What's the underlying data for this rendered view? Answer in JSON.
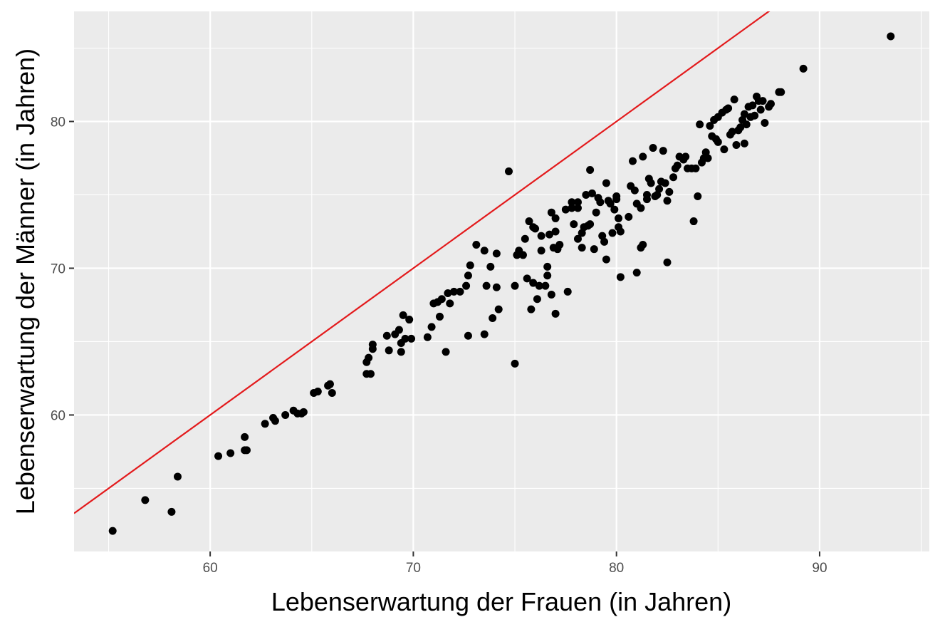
{
  "chart_data": {
    "type": "scatter",
    "title": "",
    "xlabel": "Lebenserwartung der Frauen (in Jahren)",
    "ylabel": "Lebenserwartung der Männer (in Jahren)",
    "xlim": [
      53.3,
      95.4
    ],
    "ylim": [
      50.7,
      87.5
    ],
    "x_ticks": [
      60,
      70,
      80,
      90
    ],
    "y_ticks": [
      60,
      70,
      80
    ],
    "x_tick_labels": [
      "60",
      "70",
      "80",
      "90"
    ],
    "y_tick_labels": [
      "60",
      "70",
      "80"
    ],
    "grid": true,
    "background": "#ebebeb",
    "grid_color": "#ffffff",
    "point_color": "#000000",
    "reference_line": {
      "type": "identity",
      "slope": 1,
      "intercept": 0,
      "color": "#e31a1c"
    },
    "points": [
      [
        55.2,
        52.1
      ],
      [
        56.8,
        54.2
      ],
      [
        58.1,
        53.4
      ],
      [
        58.4,
        55.8
      ],
      [
        60.4,
        57.2
      ],
      [
        61.0,
        57.4
      ],
      [
        61.7,
        57.6
      ],
      [
        61.8,
        57.6
      ],
      [
        61.7,
        58.5
      ],
      [
        62.7,
        59.4
      ],
      [
        63.1,
        59.8
      ],
      [
        63.2,
        59.6
      ],
      [
        63.7,
        60.0
      ],
      [
        64.1,
        60.3
      ],
      [
        64.3,
        60.1
      ],
      [
        64.5,
        60.1
      ],
      [
        64.6,
        60.2
      ],
      [
        65.1,
        61.5
      ],
      [
        65.3,
        61.6
      ],
      [
        65.8,
        62.0
      ],
      [
        65.9,
        62.1
      ],
      [
        66.0,
        61.5
      ],
      [
        67.7,
        63.6
      ],
      [
        67.8,
        63.9
      ],
      [
        68.0,
        64.5
      ],
      [
        68.0,
        64.8
      ],
      [
        67.7,
        62.8
      ],
      [
        67.9,
        62.8
      ],
      [
        68.7,
        65.4
      ],
      [
        68.8,
        64.4
      ],
      [
        69.1,
        65.5
      ],
      [
        69.3,
        65.8
      ],
      [
        69.4,
        64.9
      ],
      [
        69.4,
        64.3
      ],
      [
        69.5,
        66.8
      ],
      [
        69.6,
        65.2
      ],
      [
        69.8,
        66.5
      ],
      [
        69.9,
        65.2
      ],
      [
        70.7,
        65.3
      ],
      [
        70.9,
        66.0
      ],
      [
        71.0,
        67.6
      ],
      [
        71.2,
        67.7
      ],
      [
        71.4,
        67.9
      ],
      [
        71.3,
        66.7
      ],
      [
        71.6,
        64.3
      ],
      [
        71.7,
        68.3
      ],
      [
        71.8,
        67.6
      ],
      [
        72.0,
        68.4
      ],
      [
        72.3,
        68.4
      ],
      [
        72.6,
        68.8
      ],
      [
        72.7,
        69.5
      ],
      [
        72.8,
        70.2
      ],
      [
        72.7,
        65.4
      ],
      [
        73.1,
        71.6
      ],
      [
        73.5,
        71.2
      ],
      [
        73.6,
        68.8
      ],
      [
        73.5,
        65.5
      ],
      [
        73.8,
        70.1
      ],
      [
        73.9,
        66.6
      ],
      [
        74.1,
        71.0
      ],
      [
        74.1,
        68.7
      ],
      [
        74.2,
        67.2
      ],
      [
        74.7,
        76.6
      ],
      [
        75.0,
        68.8
      ],
      [
        75.0,
        63.5
      ],
      [
        75.1,
        70.9
      ],
      [
        75.2,
        71.2
      ],
      [
        75.4,
        70.9
      ],
      [
        75.5,
        72.0
      ],
      [
        75.6,
        69.3
      ],
      [
        75.7,
        73.2
      ],
      [
        75.8,
        67.2
      ],
      [
        75.9,
        72.8
      ],
      [
        75.9,
        69.0
      ],
      [
        76.0,
        72.7
      ],
      [
        76.1,
        67.9
      ],
      [
        76.2,
        68.8
      ],
      [
        76.3,
        72.2
      ],
      [
        76.3,
        71.2
      ],
      [
        76.5,
        68.8
      ],
      [
        76.6,
        69.5
      ],
      [
        76.6,
        70.1
      ],
      [
        76.7,
        72.3
      ],
      [
        76.8,
        73.8
      ],
      [
        76.8,
        68.2
      ],
      [
        76.9,
        71.4
      ],
      [
        77.0,
        72.5
      ],
      [
        77.0,
        73.4
      ],
      [
        77.0,
        66.9
      ],
      [
        77.1,
        71.3
      ],
      [
        77.2,
        71.6
      ],
      [
        77.5,
        74.0
      ],
      [
        77.6,
        68.4
      ],
      [
        77.8,
        74.1
      ],
      [
        77.9,
        73.0
      ],
      [
        77.8,
        74.5
      ],
      [
        78.1,
        72.0
      ],
      [
        78.1,
        74.5
      ],
      [
        78.1,
        74.1
      ],
      [
        78.3,
        72.4
      ],
      [
        78.3,
        71.4
      ],
      [
        78.4,
        72.8
      ],
      [
        78.5,
        75.0
      ],
      [
        78.6,
        72.9
      ],
      [
        78.7,
        76.7
      ],
      [
        78.7,
        73.0
      ],
      [
        78.8,
        75.1
      ],
      [
        78.9,
        71.3
      ],
      [
        79.0,
        73.8
      ],
      [
        79.1,
        74.8
      ],
      [
        79.2,
        74.5
      ],
      [
        79.3,
        72.2
      ],
      [
        79.4,
        71.8
      ],
      [
        79.5,
        70.6
      ],
      [
        79.5,
        75.8
      ],
      [
        79.6,
        74.6
      ],
      [
        79.7,
        74.4
      ],
      [
        79.8,
        72.4
      ],
      [
        79.9,
        74.0
      ],
      [
        80.0,
        74.7
      ],
      [
        80.0,
        74.9
      ],
      [
        80.1,
        73.4
      ],
      [
        80.1,
        72.8
      ],
      [
        80.2,
        72.5
      ],
      [
        80.2,
        69.4
      ],
      [
        80.6,
        73.5
      ],
      [
        80.7,
        75.6
      ],
      [
        80.8,
        77.3
      ],
      [
        80.9,
        75.3
      ],
      [
        81.0,
        74.4
      ],
      [
        81.0,
        69.7
      ],
      [
        81.2,
        74.1
      ],
      [
        81.2,
        71.4
      ],
      [
        81.3,
        71.6
      ],
      [
        81.3,
        77.6
      ],
      [
        81.5,
        74.7
      ],
      [
        81.5,
        75.0
      ],
      [
        81.6,
        76.1
      ],
      [
        81.7,
        75.8
      ],
      [
        81.8,
        78.2
      ],
      [
        81.9,
        74.9
      ],
      [
        82.0,
        75.0
      ],
      [
        82.1,
        75.4
      ],
      [
        82.2,
        75.9
      ],
      [
        82.3,
        78.0
      ],
      [
        82.4,
        75.8
      ],
      [
        82.5,
        74.6
      ],
      [
        82.5,
        70.4
      ],
      [
        82.6,
        75.2
      ],
      [
        82.8,
        76.2
      ],
      [
        82.9,
        76.8
      ],
      [
        83.0,
        77.0
      ],
      [
        83.1,
        77.6
      ],
      [
        83.3,
        77.4
      ],
      [
        83.4,
        77.6
      ],
      [
        83.5,
        76.8
      ],
      [
        83.7,
        76.8
      ],
      [
        83.8,
        73.2
      ],
      [
        83.9,
        76.8
      ],
      [
        84.0,
        74.9
      ],
      [
        84.1,
        79.8
      ],
      [
        84.2,
        77.2
      ],
      [
        84.3,
        77.5
      ],
      [
        84.4,
        77.9
      ],
      [
        84.5,
        77.5
      ],
      [
        84.6,
        79.7
      ],
      [
        84.7,
        79.0
      ],
      [
        84.8,
        80.1
      ],
      [
        84.9,
        78.8
      ],
      [
        85.0,
        78.6
      ],
      [
        85.0,
        80.3
      ],
      [
        85.2,
        80.6
      ],
      [
        85.3,
        78.1
      ],
      [
        85.4,
        80.8
      ],
      [
        85.5,
        80.9
      ],
      [
        85.6,
        79.1
      ],
      [
        85.7,
        79.3
      ],
      [
        85.8,
        81.5
      ],
      [
        85.9,
        78.4
      ],
      [
        86.0,
        79.4
      ],
      [
        86.1,
        79.6
      ],
      [
        86.2,
        80.1
      ],
      [
        86.3,
        80.5
      ],
      [
        86.3,
        78.5
      ],
      [
        86.4,
        79.8
      ],
      [
        86.5,
        81.0
      ],
      [
        86.6,
        80.3
      ],
      [
        86.7,
        81.1
      ],
      [
        86.8,
        80.4
      ],
      [
        86.9,
        81.7
      ],
      [
        87.0,
        81.4
      ],
      [
        87.1,
        80.8
      ],
      [
        87.2,
        81.4
      ],
      [
        87.3,
        79.9
      ],
      [
        87.5,
        81.0
      ],
      [
        87.6,
        81.2
      ],
      [
        88.0,
        82.0
      ],
      [
        88.1,
        82.0
      ],
      [
        89.2,
        83.6
      ],
      [
        93.5,
        85.8
      ]
    ]
  }
}
